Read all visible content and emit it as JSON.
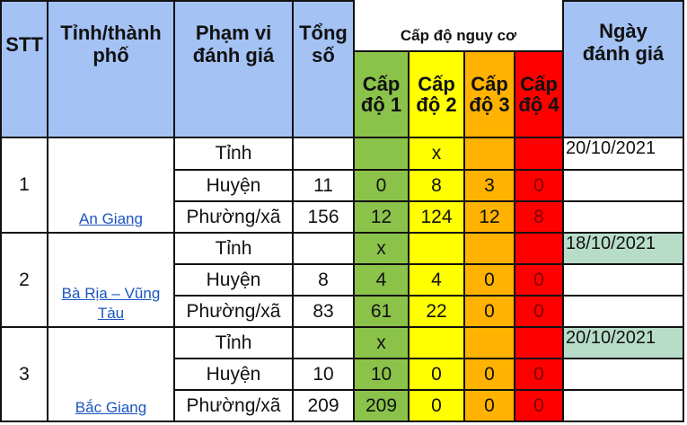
{
  "header": {
    "stt": "STT",
    "province": "Tỉnh/thành phố",
    "scope": "Phạm vi đánh giá",
    "total": "Tổng số",
    "risk_title": "Cấp độ nguy cơ",
    "levels": [
      "Cấp độ 1",
      "Cấp độ 2",
      "Cấp độ 3",
      "Cấp độ 4"
    ],
    "date": "Ngày đánh giá"
  },
  "colors": {
    "level1": "#8bc34a",
    "level2": "#ffff00",
    "level3": "#ffb300",
    "level4": "#ff0000",
    "header": "#a4c2f4"
  },
  "rows": [
    {
      "stt": "1",
      "province": "An Giang",
      "date": "20/10/2021",
      "sub": [
        {
          "scope": "Tỉnh",
          "total": "",
          "l1": "",
          "l2": "x",
          "l3": "",
          "l4": ""
        },
        {
          "scope": "Huyện",
          "total": "11",
          "l1": "0",
          "l2": "8",
          "l3": "3",
          "l4": "0"
        },
        {
          "scope": "Phường/xã",
          "total": "156",
          "l1": "12",
          "l2": "124",
          "l3": "12",
          "l4": "8"
        }
      ]
    },
    {
      "stt": "2",
      "province": "Bà Rịa – Vũng Tàu",
      "date": "18/10/2021",
      "sub": [
        {
          "scope": "Tỉnh",
          "total": "",
          "l1": "x",
          "l2": "",
          "l3": "",
          "l4": ""
        },
        {
          "scope": "Huyện",
          "total": "8",
          "l1": "4",
          "l2": "4",
          "l3": "0",
          "l4": "0"
        },
        {
          "scope": "Phường/xã",
          "total": "83",
          "l1": "61",
          "l2": "22",
          "l3": "0",
          "l4": "0"
        }
      ]
    },
    {
      "stt": "3",
      "province": "Bắc Giang",
      "date": "20/10/2021",
      "sub": [
        {
          "scope": "Tỉnh",
          "total": "",
          "l1": "x",
          "l2": "",
          "l3": "",
          "l4": ""
        },
        {
          "scope": "Huyện",
          "total": "10",
          "l1": "10",
          "l2": "0",
          "l3": "0",
          "l4": "0"
        },
        {
          "scope": "Phường/xã",
          "total": "209",
          "l1": "209",
          "l2": "0",
          "l3": "0",
          "l4": "0"
        }
      ]
    }
  ]
}
